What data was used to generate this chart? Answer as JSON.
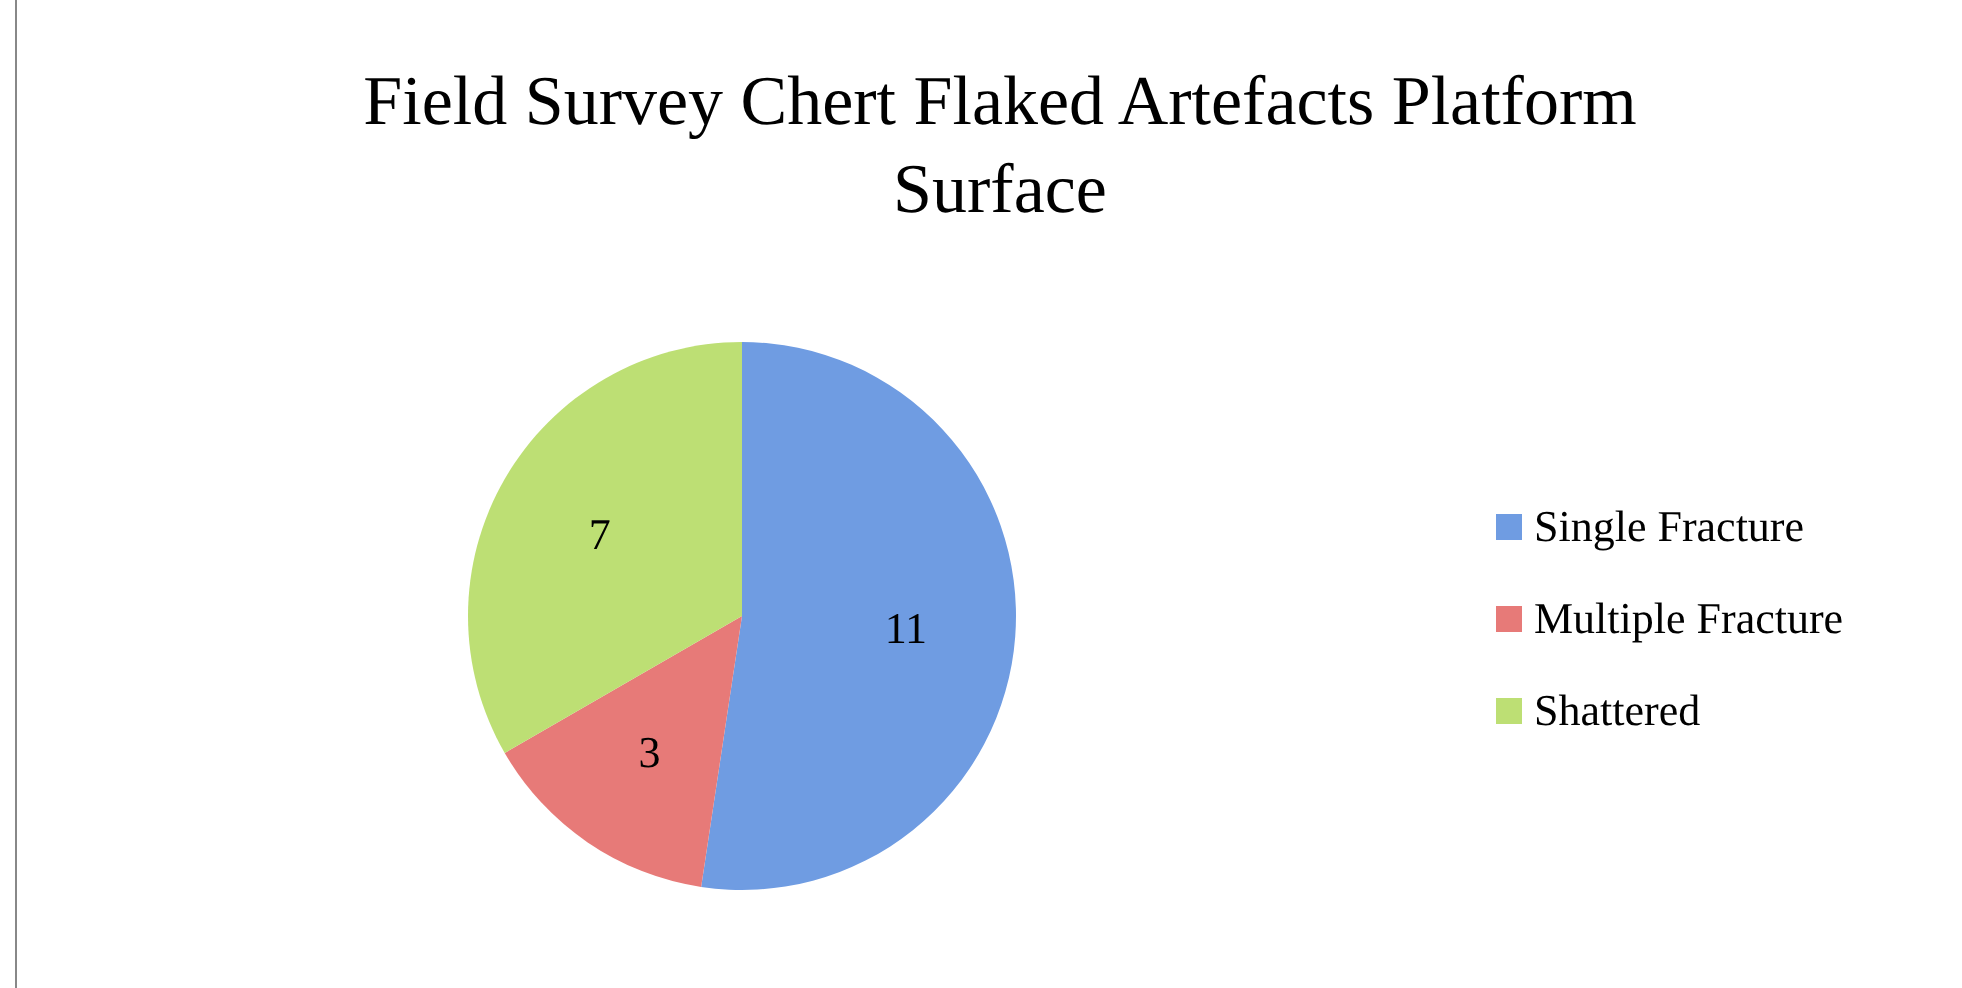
{
  "chart_data": {
    "type": "pie",
    "title": "Field Survey Chert Flaked Artefacts Platform Surface",
    "categories": [
      "Single Fracture",
      "Multiple Fracture",
      "Shattered"
    ],
    "values": [
      11,
      3,
      7
    ],
    "colors": [
      "#6f9ce2",
      "#e77a78",
      "#bddf74"
    ],
    "data_labels": true,
    "legend": "right"
  }
}
